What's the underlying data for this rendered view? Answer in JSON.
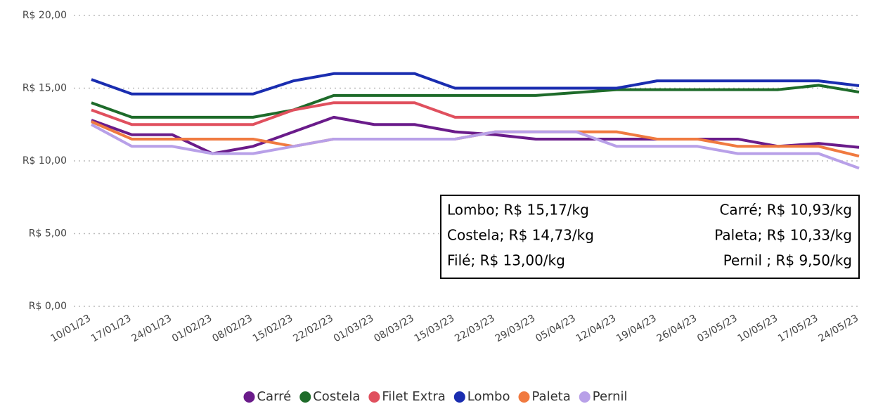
{
  "chart_data": {
    "type": "line",
    "categories": [
      "10/01/23",
      "17/01/23",
      "24/01/23",
      "01/02/23",
      "08/02/23",
      "15/02/23",
      "22/02/23",
      "01/03/23",
      "08/03/23",
      "15/03/23",
      "22/03/23",
      "29/03/23",
      "05/04/23",
      "12/04/23",
      "19/04/23",
      "26/04/23",
      "03/05/23",
      "10/05/23",
      "17/05/23",
      "24/05/23"
    ],
    "series": [
      {
        "name": "Carré",
        "color": "#6a1b8a",
        "values": [
          12.8,
          11.8,
          11.8,
          10.5,
          11.0,
          12.0,
          13.0,
          12.5,
          12.5,
          12.0,
          11.8,
          11.5,
          11.5,
          11.5,
          11.5,
          11.5,
          11.5,
          11.0,
          11.2,
          10.93
        ]
      },
      {
        "name": "Costela",
        "color": "#1e6b2a",
        "values": [
          14.0,
          13.0,
          13.0,
          13.0,
          13.0,
          13.5,
          14.5,
          14.5,
          14.5,
          14.5,
          14.5,
          14.5,
          14.7,
          14.9,
          14.9,
          14.9,
          14.9,
          14.9,
          15.2,
          14.73
        ]
      },
      {
        "name": "Filet Extra",
        "color": "#e0505e",
        "values": [
          13.5,
          12.5,
          12.5,
          12.5,
          12.5,
          13.5,
          14.0,
          14.0,
          14.0,
          13.0,
          13.0,
          13.0,
          13.0,
          13.0,
          13.0,
          13.0,
          13.0,
          13.0,
          13.0,
          13.0
        ]
      },
      {
        "name": "Lombo",
        "color": "#1a2db0",
        "values": [
          15.6,
          14.6,
          14.6,
          14.6,
          14.6,
          15.5,
          16.0,
          16.0,
          16.0,
          15.0,
          15.0,
          15.0,
          15.0,
          15.0,
          15.5,
          15.5,
          15.5,
          15.5,
          15.5,
          15.17
        ]
      },
      {
        "name": "Paleta",
        "color": "#f07a40",
        "values": [
          12.7,
          11.5,
          11.5,
          11.5,
          11.5,
          11.0,
          11.5,
          11.5,
          11.5,
          11.5,
          12.0,
          12.0,
          12.0,
          12.0,
          11.5,
          11.5,
          11.0,
          11.0,
          11.0,
          10.33
        ]
      },
      {
        "name": "Pernil",
        "color": "#b8a0e8",
        "values": [
          12.5,
          11.0,
          11.0,
          10.5,
          10.5,
          11.0,
          11.5,
          11.5,
          11.5,
          11.5,
          12.0,
          12.0,
          12.0,
          11.0,
          11.0,
          11.0,
          10.5,
          10.5,
          10.5,
          9.5
        ]
      }
    ],
    "ylim": [
      0,
      20
    ],
    "yticks": [
      {
        "value": 0,
        "label": "R$ 0,00"
      },
      {
        "value": 5,
        "label": "R$ 5,00"
      },
      {
        "value": 10,
        "label": "R$ 10,00"
      },
      {
        "value": 15,
        "label": "R$ 15,00"
      },
      {
        "value": 20,
        "label": "R$ 20,00"
      }
    ],
    "grid": true,
    "legend": "bottom",
    "annotations": [
      "Lombo; R$ 15,17/kg",
      "Costela; R$ 14,73/kg",
      "Filé; R$ 13,00/kg",
      "Carré; R$ 10,93/kg",
      "Paleta; R$ 10,33/kg",
      "Pernil ; R$ 9,50/kg"
    ]
  }
}
